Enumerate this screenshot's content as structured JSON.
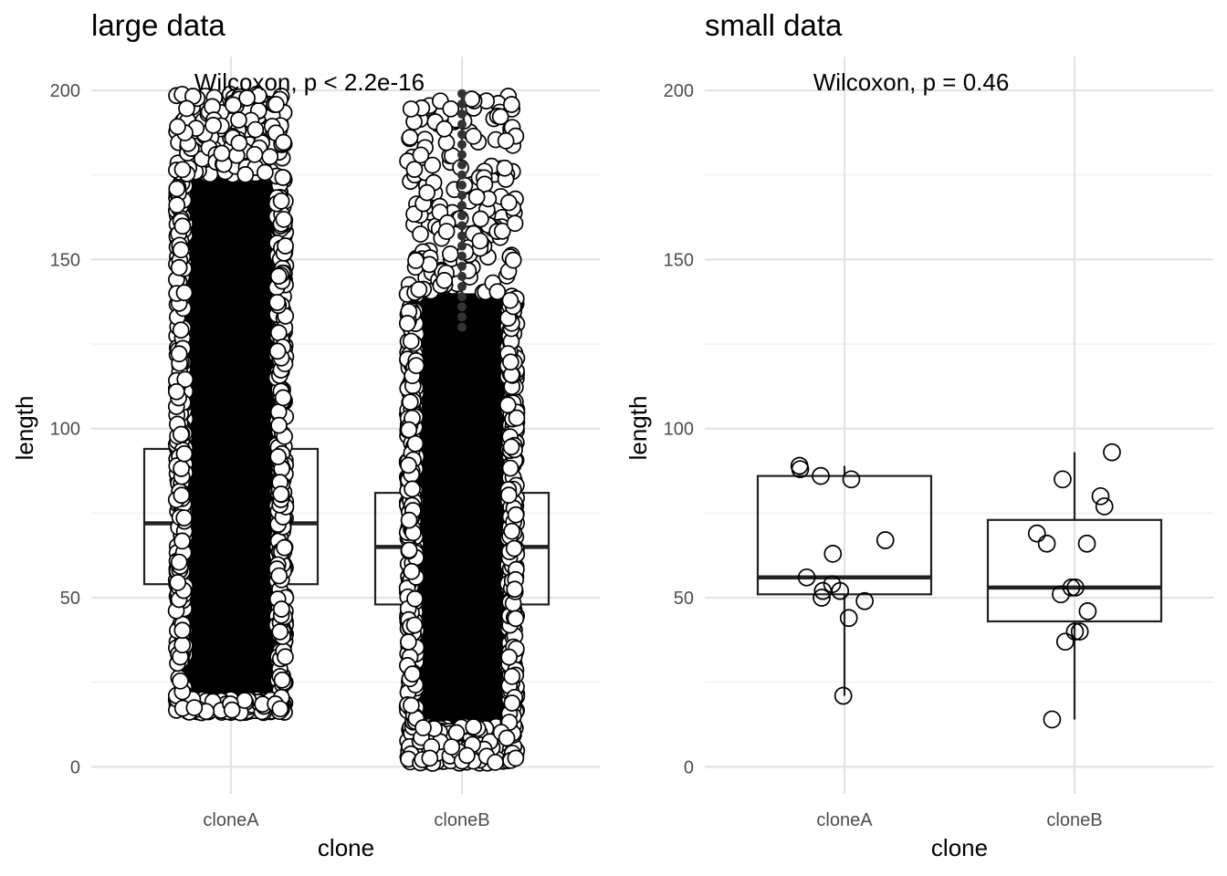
{
  "chart_data": [
    {
      "type": "boxplot",
      "title": "large data",
      "xlabel": "clone",
      "ylabel": "length",
      "categories": [
        "cloneA",
        "cloneB"
      ],
      "ylim": [
        -8,
        210
      ],
      "yticks": [
        0,
        50,
        100,
        150,
        200
      ],
      "annotation": "Wilcoxon, p < 2.2e-16",
      "grid": true,
      "points_style": "open circles, jittered",
      "boxes": [
        {
          "category": "cloneA",
          "q1": 54,
          "median": 72,
          "q3": 94,
          "whisker_low": 17,
          "whisker_high": 199
        },
        {
          "category": "cloneB",
          "q1": 48,
          "median": 65,
          "q3": 81,
          "whisker_low": 1,
          "whisker_high": 199
        }
      ],
      "point_range": [
        {
          "category": "cloneA",
          "min": 16,
          "max": 199,
          "dense_min": 20,
          "dense_max": 175
        },
        {
          "category": "cloneB",
          "min": 1,
          "max": 199,
          "dense_min": 12,
          "dense_max": 140
        }
      ]
    },
    {
      "type": "boxplot",
      "title": "small data",
      "xlabel": "clone",
      "ylabel": "length",
      "categories": [
        "cloneA",
        "cloneB"
      ],
      "ylim": [
        -8,
        210
      ],
      "yticks": [
        0,
        50,
        100,
        150,
        200
      ],
      "annotation": "Wilcoxon, p = 0.46",
      "grid": true,
      "points_style": "open circles, jittered",
      "boxes": [
        {
          "category": "cloneA",
          "q1": 51,
          "median": 56,
          "q3": 86,
          "whisker_low": 21,
          "whisker_high": 89
        },
        {
          "category": "cloneB",
          "q1": 43,
          "median": 53,
          "q3": 73,
          "whisker_low": 14,
          "whisker_high": 93
        }
      ],
      "points": [
        {
          "category": "cloneA",
          "values": [
            89,
            88,
            85,
            86,
            67,
            63,
            56,
            52,
            54,
            52,
            50,
            49,
            44,
            21
          ]
        },
        {
          "category": "cloneB",
          "values": [
            93,
            85,
            80,
            77,
            69,
            66,
            66,
            53,
            53,
            51,
            46,
            40,
            40,
            37,
            14
          ]
        }
      ]
    }
  ]
}
